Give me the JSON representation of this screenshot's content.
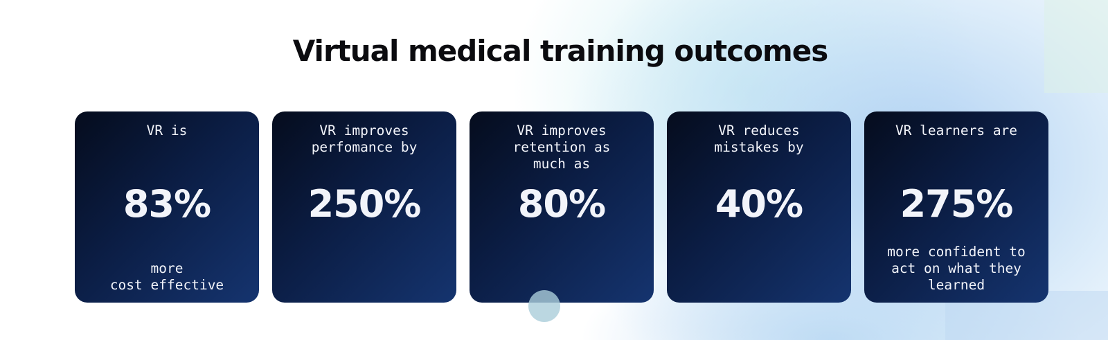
{
  "title": "Virtual medical training outcomes",
  "cards": [
    {
      "lead": "VR is",
      "stat": "83%",
      "trail": "more\ncost effective"
    },
    {
      "lead": "VR improves\nperfomance by",
      "stat": "250%",
      "trail": ""
    },
    {
      "lead": "VR improves\nretention as\nmuch as",
      "stat": "80%",
      "trail": ""
    },
    {
      "lead": "VR reduces\nmistakes by",
      "stat": "40%",
      "trail": ""
    },
    {
      "lead": "VR learners are",
      "stat": "275%",
      "trail": "more confident to\nact on what they\nlearned"
    }
  ],
  "colors": {
    "card_dark": "#050c1d",
    "card_light": "#15346f",
    "title": "#0b0b0f",
    "card_text": "#f2f4fa"
  }
}
